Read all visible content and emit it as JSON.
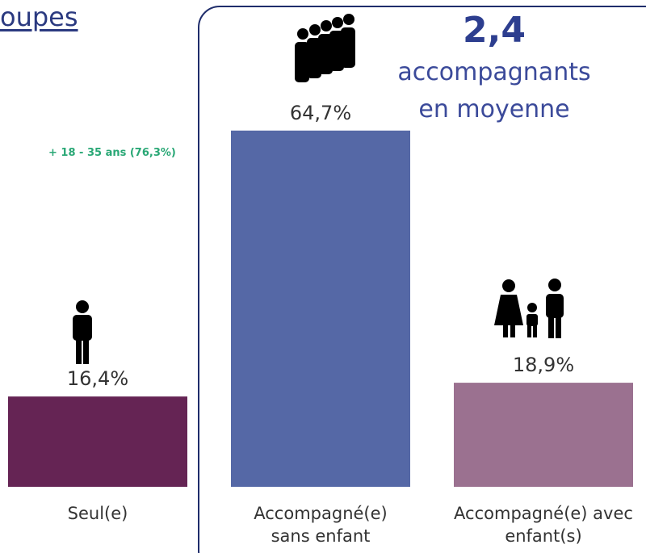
{
  "chart_data": {
    "type": "bar",
    "title": "oupes",
    "headline": "2,4",
    "headline_lines": [
      "accompagnants",
      "en moyenne"
    ],
    "annotation": "+ 18 - 35 ans (76,3%)",
    "categories": [
      "Seul(e)",
      "Accompagné(e)\nsans enfant",
      "Accompagné(e) avec\nenfant(s)"
    ],
    "values": [
      16.4,
      64.7,
      18.9
    ],
    "value_labels": [
      "16,4%",
      "64,7%",
      "18,9%"
    ],
    "colors": [
      "#652454",
      "#5568a6",
      "#9b7190"
    ]
  }
}
